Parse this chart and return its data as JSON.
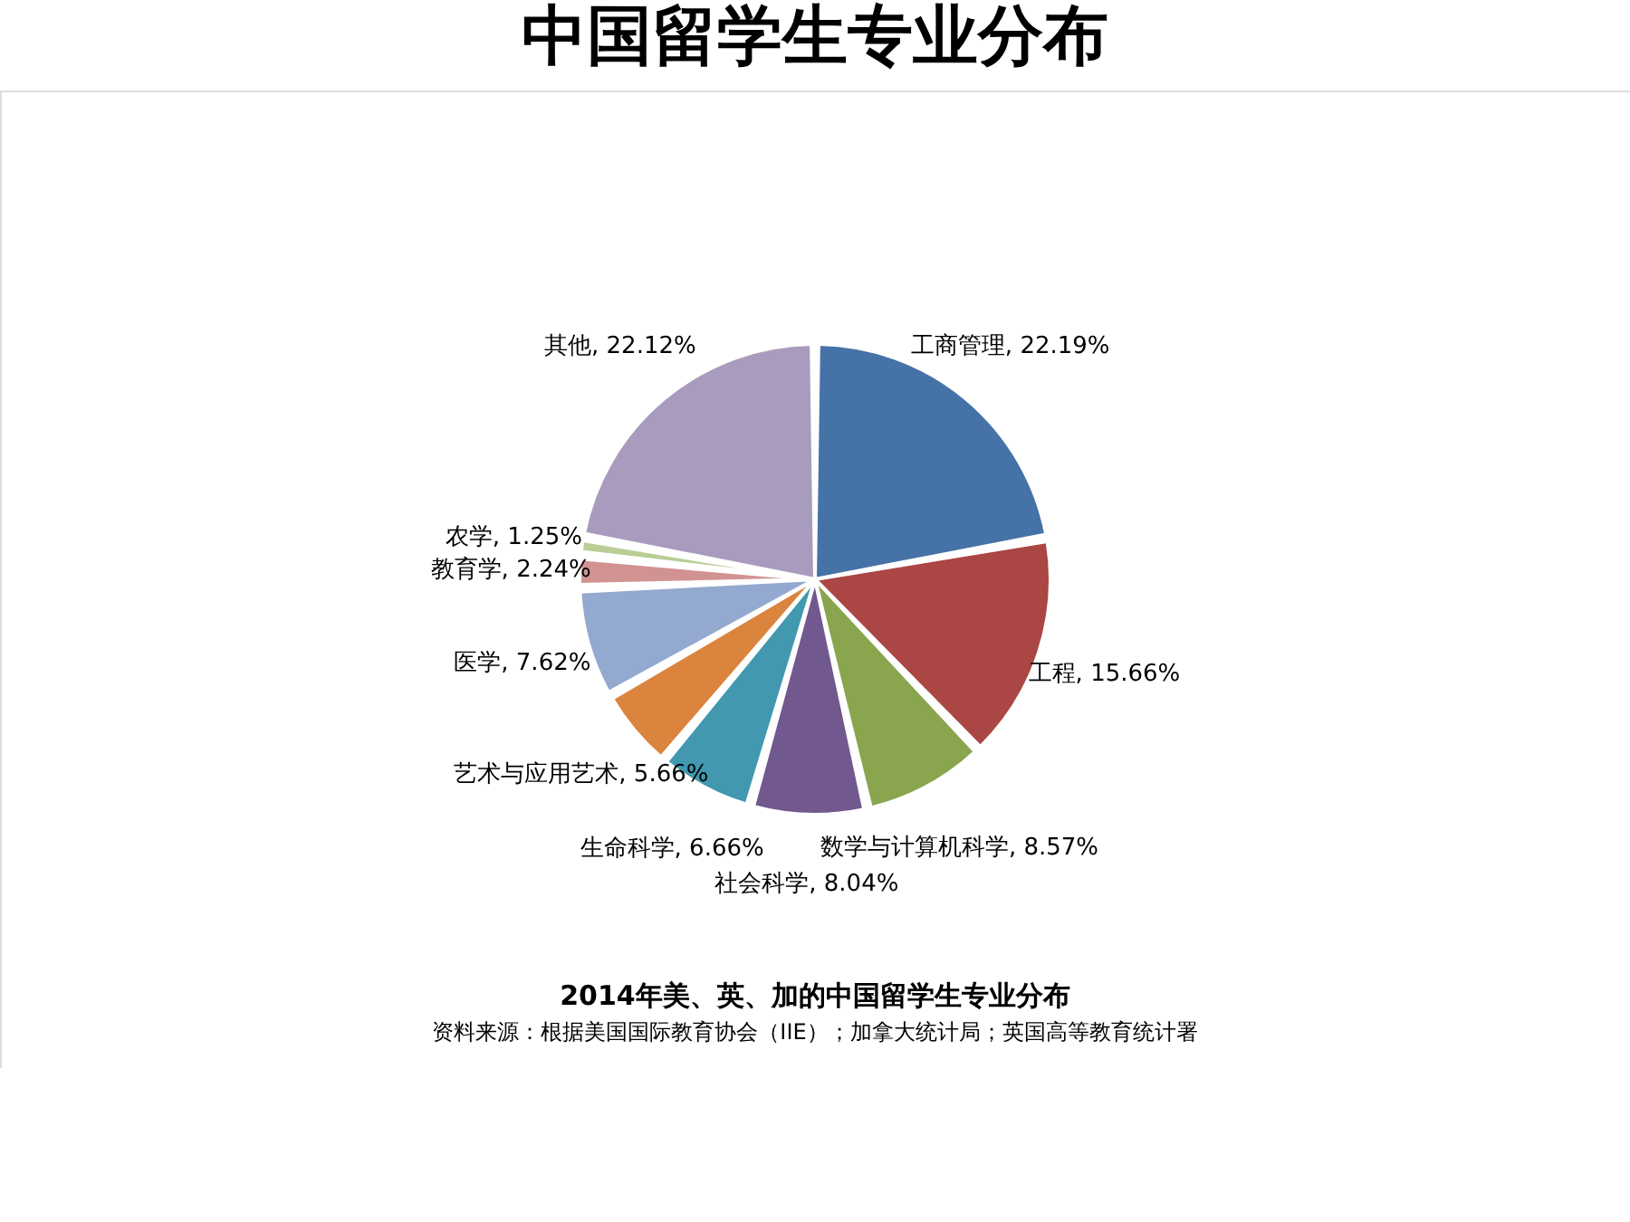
{
  "chart_data": {
    "type": "pie",
    "title": "中国留学生专业分布",
    "categories": [
      "工商管理",
      "工程",
      "数学与计算机科学",
      "社会科学",
      "生命科学",
      "艺术与应用艺术",
      "医学",
      "教育学",
      "农学",
      "其他"
    ],
    "values": [
      22.19,
      15.66,
      8.57,
      8.04,
      6.66,
      5.66,
      7.62,
      2.24,
      1.25,
      22.12
    ],
    "value_labels": [
      "22.19%",
      "15.66%",
      "8.57%",
      "8.04%",
      "6.66%",
      "5.66%",
      "7.62%",
      "2.24%",
      "1.25%",
      "22.12%"
    ],
    "colors": [
      "#4572a7",
      "#aa4643",
      "#89a54e",
      "#71588f",
      "#4198af",
      "#db843d",
      "#93a9cf",
      "#d19392",
      "#b9cd96",
      "#a99bbd"
    ],
    "annotations": [
      "2014年美、英、加的中国留学生专业分布",
      "资料来源：根据美国国际教育协会（IIE）；加拿大统计局；英国高等教育统计署"
    ]
  }
}
